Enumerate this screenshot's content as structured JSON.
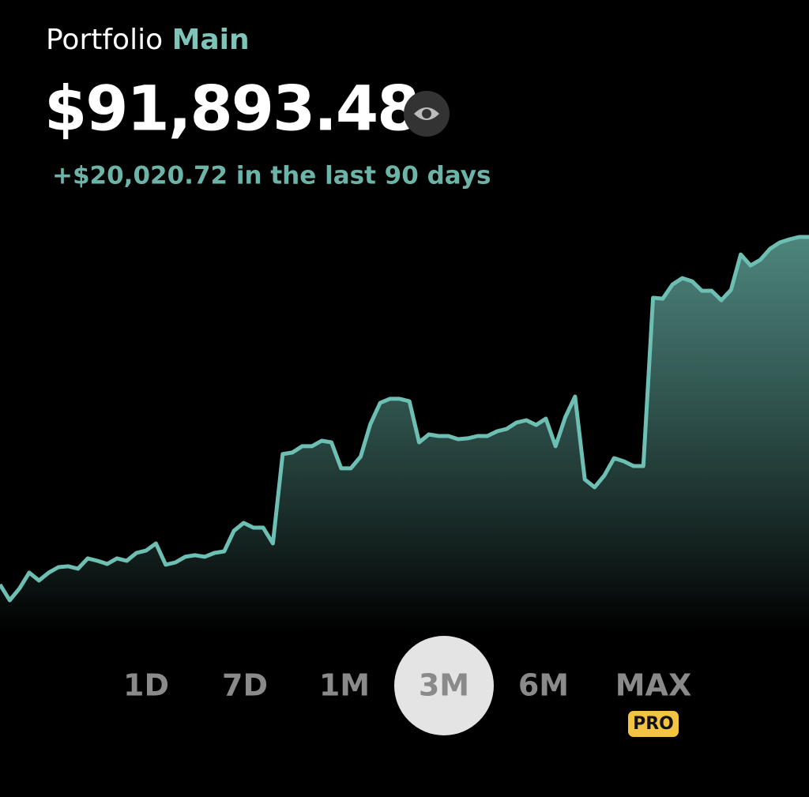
{
  "header": {
    "title": "Portfolio",
    "account": "Main",
    "balance": "$91,893.48",
    "change": "+$20,020.72 in the last 90 days"
  },
  "chart_data": {
    "type": "area",
    "color": "#6cbfb2",
    "values": [
      72090,
      71190,
      71870,
      72770,
      72320,
      72770,
      73080,
      73130,
      72990,
      73580,
      73440,
      73260,
      73580,
      73440,
      73890,
      74030,
      74430,
      73220,
      73350,
      73670,
      73760,
      73670,
      73890,
      73980,
      75150,
      75600,
      75330,
      75330,
      74430,
      79520,
      79610,
      79970,
      79970,
      80280,
      80190,
      78710,
      78710,
      79380,
      81230,
      82440,
      82670,
      82670,
      82530,
      80190,
      80640,
      80550,
      80550,
      80370,
      80420,
      80550,
      80550,
      80820,
      80960,
      81320,
      81450,
      81180,
      81540,
      79970,
      81630,
      82800,
      78080,
      77630,
      78300,
      79290,
      79110,
      78840,
      78840,
      88430,
      88380,
      89190,
      89550,
      89370,
      88830,
      88830,
      88290,
      88880,
      90900,
      90270,
      90590,
      91220,
      91580,
      91760,
      91893.48,
      91893.48
    ]
  },
  "tabs": [
    "1D",
    "7D",
    "1M",
    "3M",
    "6M",
    "MAX"
  ],
  "selected_tab_index": 3,
  "badge": "PRO"
}
